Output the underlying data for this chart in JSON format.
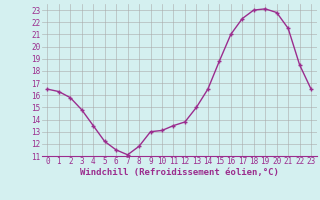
{
  "x": [
    0,
    1,
    2,
    3,
    4,
    5,
    6,
    7,
    8,
    9,
    10,
    11,
    12,
    13,
    14,
    15,
    16,
    17,
    18,
    19,
    20,
    21,
    22,
    23
  ],
  "y": [
    16.5,
    16.3,
    15.8,
    14.8,
    13.5,
    12.2,
    11.5,
    11.1,
    11.8,
    13.0,
    13.1,
    13.5,
    13.8,
    15.0,
    16.5,
    18.8,
    21.0,
    22.3,
    23.0,
    23.1,
    22.8,
    21.5,
    18.5,
    16.5
  ],
  "line_color": "#9b2d8e",
  "marker": "+",
  "marker_size": 3.5,
  "marker_linewidth": 1.0,
  "background_color": "#d4f0f0",
  "grid_color": "#aaaaaa",
  "xlabel": "Windchill (Refroidissement éolien,°C)",
  "xlim": [
    -0.5,
    23.5
  ],
  "ylim": [
    11,
    23.5
  ],
  "yticks": [
    11,
    12,
    13,
    14,
    15,
    16,
    17,
    18,
    19,
    20,
    21,
    22,
    23
  ],
  "xticks": [
    0,
    1,
    2,
    3,
    4,
    5,
    6,
    7,
    8,
    9,
    10,
    11,
    12,
    13,
    14,
    15,
    16,
    17,
    18,
    19,
    20,
    21,
    22,
    23
  ],
  "tick_label_color": "#9b2d8e",
  "axis_label_color": "#9b2d8e",
  "line_width": 1.0,
  "tick_fontsize": 5.5,
  "xlabel_fontsize": 6.5,
  "spine_color": "#9b2d8e"
}
